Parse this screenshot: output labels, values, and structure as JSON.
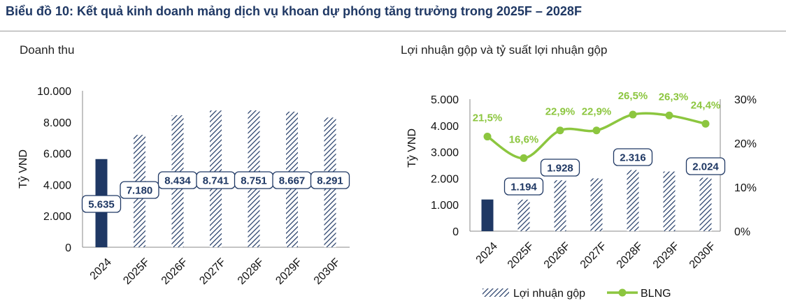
{
  "header": {
    "title": "Biểu đồ 10: Kết quả kinh doanh mảng dịch vụ khoan dự phóng tăng trưởng trong 2025F – 2028F"
  },
  "colors": {
    "actual_bar": "#1f3864",
    "hatch": "#1f3864",
    "line": "#8cc63f",
    "title": "#1f3864"
  },
  "chart_data": [
    {
      "type": "bar",
      "title": "Doanh thu",
      "ylabel": "Tỷ VND",
      "xlabel": "",
      "categories": [
        "2024",
        "2025F",
        "2026F",
        "2027F",
        "2028F",
        "2029F",
        "2030F"
      ],
      "values": [
        5635,
        7180,
        8434,
        8741,
        8751,
        8667,
        8291
      ],
      "data_labels": [
        "5.635",
        "7.180",
        "8.434",
        "8.741",
        "8.751",
        "8.667",
        "8.291"
      ],
      "ylim": [
        0,
        10000
      ],
      "yticks": [
        0,
        2000,
        4000,
        6000,
        8000,
        10000
      ],
      "ytick_labels": [
        "0",
        "2.000",
        "4.000",
        "6.000",
        "8.000",
        "10.000"
      ],
      "bar_style": [
        "solid",
        "hatched",
        "hatched",
        "hatched",
        "hatched",
        "hatched",
        "hatched"
      ],
      "grid": false
    },
    {
      "type": "bar+line",
      "title": "Lợi nhuận gộp và tỷ suất lợi nhuận gộp",
      "ylabel": "Tỷ VND",
      "xlabel": "",
      "categories": [
        "2024",
        "2025F",
        "2026F",
        "2027F",
        "2028F",
        "2029F",
        "2030F"
      ],
      "series": [
        {
          "name": "Lợi nhuận gộp",
          "type": "bar",
          "axis": "left",
          "values": [
            1200,
            1194,
            1928,
            2000,
            2316,
            2260,
            2024
          ],
          "data_labels": [
            "",
            "1.194",
            "1.928",
            "",
            "2.316",
            "",
            "2.024"
          ]
        },
        {
          "name": "BLNG",
          "type": "line",
          "axis": "right",
          "values": [
            21.5,
            16.6,
            22.9,
            22.9,
            26.5,
            26.3,
            24.4
          ],
          "data_labels": [
            "21,5%",
            "16,6%",
            "22,9%",
            "22,9%",
            "26,5%",
            "26,3%",
            "24,4%"
          ]
        }
      ],
      "ylim": [
        0,
        5000
      ],
      "yticks": [
        0,
        1000,
        2000,
        3000,
        4000,
        5000
      ],
      "ytick_labels": [
        "0",
        "1.000",
        "2.000",
        "3.000",
        "4.000",
        "5.000"
      ],
      "y2lim": [
        0,
        30
      ],
      "y2ticks": [
        0,
        10,
        20,
        30
      ],
      "y2tick_labels": [
        "0%",
        "10%",
        "20%",
        "30%"
      ],
      "bar_style": [
        "solid",
        "hatched",
        "hatched",
        "hatched",
        "hatched",
        "hatched",
        "hatched"
      ],
      "legend": "bottom",
      "grid": false
    }
  ]
}
